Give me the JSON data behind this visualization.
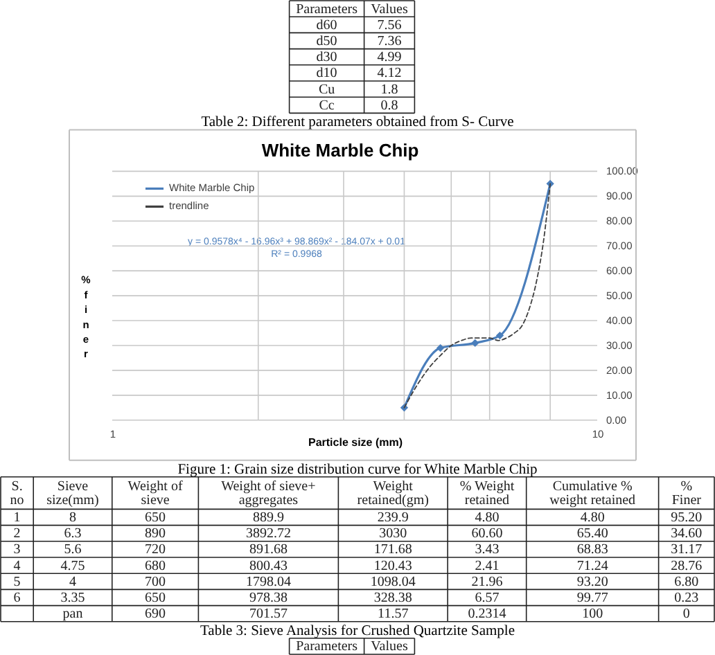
{
  "chart_data": [
    {
      "type": "other",
      "categories": [
        "Parameters",
        "Values"
      ],
      "y_categories": [
        "d60",
        "d50",
        "d30",
        "d10",
        "Cu",
        "Cc"
      ],
      "annotations": [
        "7.56",
        "7.36",
        "4.99",
        "4.12",
        "1.8",
        "0.8"
      ],
      "title": "Table 2: Different parameters obtained from S- Curve"
    },
    {
      "type": "line",
      "title": "White Marble Chip",
      "xlabel": "Particle size (mm)",
      "ylabel": "% finer",
      "log": "x",
      "xlim": [
        1,
        10
      ],
      "xticks": [
        1,
        {
          "value": 2,
          "label": null
        },
        {
          "value": 3,
          "label": null
        },
        {
          "value": 4,
          "label": null
        },
        {
          "value": 5,
          "label": null
        },
        {
          "value": 6,
          "label": null
        },
        {
          "value": 8,
          "label": null
        },
        10
      ],
      "ylim": [
        0,
        100
      ],
      "yticks": [
        {
          "value": 0,
          "label": "0.00"
        },
        {
          "value": 10,
          "label": "10.00"
        },
        {
          "value": 20,
          "label": "20.00"
        },
        {
          "value": 30,
          "label": "30.00"
        },
        {
          "value": 40,
          "label": "40.00"
        },
        {
          "value": 50,
          "label": "50.00"
        },
        {
          "value": 60,
          "label": "60.00"
        },
        {
          "value": 70,
          "label": "70.00"
        },
        {
          "value": 80,
          "label": "80.00"
        },
        {
          "value": 90,
          "label": "90.00"
        },
        {
          "value": 100,
          "label": "100.00"
        }
      ],
      "grid": true,
      "legend": "top left",
      "marker": "diamond",
      "series": [
        {
          "name": "White Marble Chip",
          "type": "line",
          "color": "#4a7ebb",
          "x": [
            4,
            4.75,
            5.6,
            6.3,
            8
          ],
          "values": [
            5,
            29,
            31,
            34,
            95
          ]
        },
        {
          "name": "trendline",
          "type": "line",
          "color": "#404040",
          "line_style": "dashed",
          "marker": "none",
          "x": [
            4,
            4.25,
            4.5,
            4.75,
            5,
            5.25,
            5.5,
            5.75,
            6,
            6.25,
            6.5,
            6.75,
            7,
            7.25,
            7.5,
            7.75,
            8
          ],
          "values": [
            5,
            14,
            21,
            26,
            30,
            32,
            33,
            33,
            33,
            32,
            33,
            35,
            38,
            45,
            56,
            72,
            95
          ]
        }
      ],
      "annotations": [
        "y = 0.9578x⁴ - 16.96x³ + 98.869x² - 184.07x + 0.01",
        "R² = 0.9968",
        "Figure 1: Grain size distribution curve for White Marble Chip"
      ]
    },
    {
      "type": "other",
      "categories": [
        "S.\nno",
        "Sieve\nsize(mm)",
        "Weight of\nsieve",
        "Weight of sieve+\naggregates",
        "Weight\nretained(gm)",
        "% Weight\nretained",
        "Cumulative %\nweight retained",
        "%\nFiner"
      ],
      "y_categories": [
        "1",
        "2",
        "3",
        "4",
        "5",
        "6",
        null
      ],
      "annotations": [
        "8",
        "650",
        "889.9",
        "239.9",
        "4.80",
        "4.80",
        "95.20",
        "6.3",
        "890",
        "3892.72",
        "3030",
        "60.60",
        "65.40",
        "34.60",
        "5.6",
        "720",
        "891.68",
        "171.68",
        "3.43",
        "68.83",
        "31.17",
        "4.75",
        "680",
        "800.43",
        "120.43",
        "2.41",
        "71.24",
        "28.76",
        "4",
        "700",
        "1798.04",
        "1098.04",
        "21.96",
        "93.20",
        "6.80",
        "3.35",
        "650",
        "978.38",
        "328.38",
        "6.57",
        "99.77",
        "0.23",
        "pan",
        "690",
        "701.57",
        "11.57",
        "0.2314",
        "100",
        "0"
      ],
      "title": "Table 3: Sieve Analysis for Crushed Quartzite Sample"
    },
    {
      "type": "other",
      "categories": [
        "Parameters",
        "Values"
      ]
    }
  ]
}
